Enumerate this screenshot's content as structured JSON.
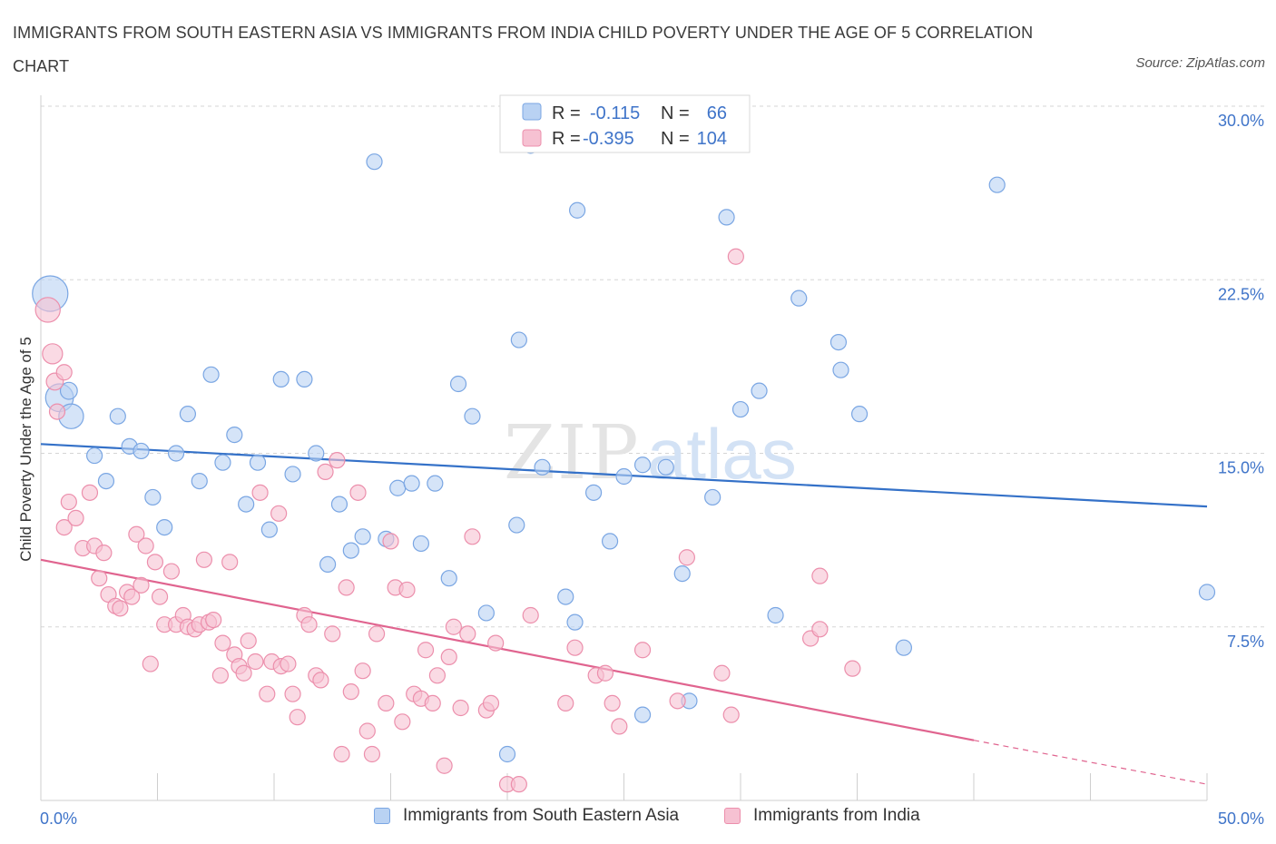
{
  "title": "IMMIGRANTS FROM SOUTH EASTERN ASIA VS IMMIGRANTS FROM INDIA CHILD POVERTY UNDER THE AGE OF 5 CORRELATION CHART",
  "source": "Source: ZipAtlas.com",
  "watermark": {
    "zip": "ZIP",
    "atlas": "atlas"
  },
  "legend": {
    "blue": {
      "r_label": "R =",
      "r_value": "-0.115",
      "n_label": "N =",
      "n_value": "66"
    },
    "pink": {
      "r_label": "R =",
      "r_value": "-0.395",
      "n_label": "N =",
      "n_value": "104"
    }
  },
  "colors": {
    "blue_fill": "#b9d2f3",
    "blue_stroke": "#7aa6e3",
    "blue_line": "#3471c8",
    "pink_fill": "#f6c1d2",
    "pink_stroke": "#ec8fac",
    "pink_line": "#e0648f",
    "tick_text": "#3f74c9",
    "grid": "#d5d5d5"
  },
  "chart_data": {
    "type": "scatter",
    "title": "IMMIGRANTS FROM SOUTH EASTERN ASIA VS IMMIGRANTS FROM INDIA CHILD POVERTY UNDER THE AGE OF 5 CORRELATION CHART",
    "xlabel": "",
    "ylabel": "Child Poverty Under the Age of 5",
    "xlim": [
      0,
      50
    ],
    "ylim": [
      0,
      30
    ],
    "x_tick_labels": [
      "0.0%",
      "50.0%"
    ],
    "y_ticks": [
      7.5,
      15,
      22.5,
      30
    ],
    "y_tick_labels": [
      "7.5%",
      "15.0%",
      "22.5%",
      "30.0%"
    ],
    "grid": true,
    "legend_position": "top-center",
    "series": [
      {
        "name": "Immigrants from South Eastern Asia",
        "color": "#b9d2f3",
        "trend": [
          [
            0,
            15.4
          ],
          [
            50,
            12.7
          ]
        ],
        "points": [
          [
            0.4,
            21.9,
            2.3
          ],
          [
            0.8,
            17.4,
            1.8
          ],
          [
            1.2,
            17.7,
            1.1
          ],
          [
            1.3,
            16.6,
            1.6
          ],
          [
            2.3,
            14.9,
            1.0
          ],
          [
            2.8,
            13.8,
            1.0
          ],
          [
            3.3,
            16.6,
            1.0
          ],
          [
            3.8,
            15.3,
            1.0
          ],
          [
            4.3,
            15.1,
            1.0
          ],
          [
            4.8,
            13.1,
            1.0
          ],
          [
            5.3,
            11.8,
            1.0
          ],
          [
            5.8,
            15.0,
            1.0
          ],
          [
            6.3,
            16.7,
            1.0
          ],
          [
            6.8,
            13.8,
            1.0
          ],
          [
            7.3,
            18.4,
            1.0
          ],
          [
            7.8,
            14.6,
            1.0
          ],
          [
            8.3,
            15.8,
            1.0
          ],
          [
            8.8,
            12.8,
            1.0
          ],
          [
            9.3,
            14.6,
            1.0
          ],
          [
            9.8,
            11.7,
            1.0
          ],
          [
            10.3,
            18.2,
            1.0
          ],
          [
            10.8,
            14.1,
            1.0
          ],
          [
            11.3,
            18.2,
            1.0
          ],
          [
            11.8,
            15.0,
            1.0
          ],
          [
            12.3,
            10.2,
            1.0
          ],
          [
            12.8,
            12.8,
            1.0
          ],
          [
            13.3,
            10.8,
            1.0
          ],
          [
            13.8,
            11.4,
            1.0
          ],
          [
            14.3,
            27.6,
            1.0
          ],
          [
            14.8,
            11.3,
            1.0
          ],
          [
            15.3,
            13.5,
            1.0
          ],
          [
            15.9,
            13.7,
            1.0
          ],
          [
            16.3,
            11.1,
            1.0
          ],
          [
            16.9,
            13.7,
            1.0
          ],
          [
            17.5,
            9.6,
            1.0
          ],
          [
            17.9,
            18.0,
            1.0
          ],
          [
            18.5,
            16.6,
            1.0
          ],
          [
            19.1,
            8.1,
            1.0
          ],
          [
            20.0,
            2.0,
            1.0
          ],
          [
            20.4,
            11.9,
            1.0
          ],
          [
            20.5,
            19.9,
            1.0
          ],
          [
            21.0,
            28.3,
            1.0
          ],
          [
            21.5,
            14.4,
            1.0
          ],
          [
            22.5,
            8.8,
            1.0
          ],
          [
            22.9,
            7.7,
            1.0
          ],
          [
            23.0,
            25.5,
            1.0
          ],
          [
            23.7,
            13.3,
            1.0
          ],
          [
            24.4,
            11.2,
            1.0
          ],
          [
            25.0,
            14.0,
            1.0
          ],
          [
            25.8,
            14.5,
            1.0
          ],
          [
            25.8,
            3.7,
            1.0
          ],
          [
            26.8,
            14.4,
            1.0
          ],
          [
            27.5,
            9.8,
            1.0
          ],
          [
            27.8,
            4.3,
            1.0
          ],
          [
            28.8,
            13.1,
            1.0
          ],
          [
            29.4,
            25.2,
            1.0
          ],
          [
            30.0,
            16.9,
            1.0
          ],
          [
            30.8,
            17.7,
            1.0
          ],
          [
            31.5,
            8.0,
            1.0
          ],
          [
            32.5,
            21.7,
            1.0
          ],
          [
            34.2,
            19.8,
            1.0
          ],
          [
            34.3,
            18.6,
            1.0
          ],
          [
            35.1,
            16.7,
            1.0
          ],
          [
            37.0,
            6.6,
            1.0
          ],
          [
            41.0,
            26.6,
            1.0
          ],
          [
            50.0,
            9.0,
            1.0
          ]
        ]
      },
      {
        "name": "Immigrants from India",
        "color": "#f6c1d2",
        "trend": [
          [
            0,
            10.4
          ],
          [
            40,
            2.6
          ]
        ],
        "trend_dashed": [
          [
            40,
            2.6
          ],
          [
            50,
            0.7
          ]
        ],
        "points": [
          [
            0.3,
            21.2,
            1.6
          ],
          [
            0.5,
            19.3,
            1.3
          ],
          [
            0.6,
            18.1,
            1.1
          ],
          [
            0.7,
            16.8,
            1.0
          ],
          [
            1.0,
            18.5,
            1.0
          ],
          [
            1.0,
            11.8,
            1.0
          ],
          [
            1.2,
            12.9,
            1.0
          ],
          [
            1.5,
            12.2,
            1.0
          ],
          [
            1.8,
            10.9,
            1.0
          ],
          [
            2.1,
            13.3,
            1.0
          ],
          [
            2.3,
            11.0,
            1.0
          ],
          [
            2.5,
            9.6,
            1.0
          ],
          [
            2.7,
            10.7,
            1.0
          ],
          [
            2.9,
            8.9,
            1.0
          ],
          [
            3.2,
            8.4,
            1.0
          ],
          [
            3.4,
            8.3,
            1.0
          ],
          [
            3.7,
            9.0,
            1.0
          ],
          [
            3.9,
            8.8,
            1.0
          ],
          [
            4.1,
            11.5,
            1.0
          ],
          [
            4.3,
            9.3,
            1.0
          ],
          [
            4.5,
            11.0,
            1.0
          ],
          [
            4.7,
            5.9,
            1.0
          ],
          [
            4.9,
            10.3,
            1.0
          ],
          [
            5.1,
            8.8,
            1.0
          ],
          [
            5.3,
            7.6,
            1.0
          ],
          [
            5.6,
            9.9,
            1.0
          ],
          [
            5.8,
            7.6,
            1.0
          ],
          [
            6.1,
            8.0,
            1.0
          ],
          [
            6.3,
            7.5,
            1.0
          ],
          [
            6.6,
            7.4,
            1.0
          ],
          [
            6.8,
            7.6,
            1.0
          ],
          [
            7.0,
            10.4,
            1.0
          ],
          [
            7.2,
            7.7,
            1.0
          ],
          [
            7.4,
            7.8,
            1.0
          ],
          [
            7.7,
            5.4,
            1.0
          ],
          [
            7.8,
            6.8,
            1.0
          ],
          [
            8.1,
            10.3,
            1.0
          ],
          [
            8.3,
            6.3,
            1.0
          ],
          [
            8.5,
            5.8,
            1.0
          ],
          [
            8.7,
            5.5,
            1.0
          ],
          [
            8.9,
            6.9,
            1.0
          ],
          [
            9.2,
            6.0,
            1.0
          ],
          [
            9.4,
            13.3,
            1.0
          ],
          [
            9.7,
            4.6,
            1.0
          ],
          [
            9.9,
            6.0,
            1.0
          ],
          [
            10.2,
            12.4,
            1.0
          ],
          [
            10.3,
            5.8,
            1.0
          ],
          [
            10.6,
            5.9,
            1.0
          ],
          [
            10.8,
            4.6,
            1.0
          ],
          [
            11.0,
            3.6,
            1.0
          ],
          [
            11.3,
            8.0,
            1.0
          ],
          [
            11.5,
            7.6,
            1.0
          ],
          [
            11.8,
            5.4,
            1.0
          ],
          [
            12.0,
            5.2,
            1.0
          ],
          [
            12.2,
            14.2,
            1.0
          ],
          [
            12.5,
            7.2,
            1.0
          ],
          [
            12.7,
            14.7,
            1.0
          ],
          [
            12.9,
            2.0,
            1.0
          ],
          [
            13.1,
            9.2,
            1.0
          ],
          [
            13.3,
            4.7,
            1.0
          ],
          [
            13.6,
            13.3,
            1.0
          ],
          [
            13.8,
            5.6,
            1.0
          ],
          [
            14.0,
            3.0,
            1.0
          ],
          [
            14.2,
            2.0,
            1.0
          ],
          [
            14.4,
            7.2,
            1.0
          ],
          [
            14.8,
            4.2,
            1.0
          ],
          [
            15.0,
            11.2,
            1.0
          ],
          [
            15.2,
            9.2,
            1.0
          ],
          [
            15.5,
            3.4,
            1.0
          ],
          [
            15.7,
            9.1,
            1.0
          ],
          [
            16.0,
            4.6,
            1.0
          ],
          [
            16.3,
            4.4,
            1.0
          ],
          [
            16.5,
            6.5,
            1.0
          ],
          [
            16.8,
            4.2,
            1.0
          ],
          [
            17.0,
            5.4,
            1.0
          ],
          [
            17.3,
            1.5,
            1.0
          ],
          [
            17.5,
            6.2,
            1.0
          ],
          [
            17.7,
            7.5,
            1.0
          ],
          [
            18.0,
            4.0,
            1.0
          ],
          [
            18.3,
            7.2,
            1.0
          ],
          [
            18.5,
            11.4,
            1.0
          ],
          [
            19.1,
            3.9,
            1.0
          ],
          [
            19.3,
            4.2,
            1.0
          ],
          [
            19.5,
            6.8,
            1.0
          ],
          [
            20.0,
            0.7,
            1.0
          ],
          [
            20.5,
            0.7,
            1.0
          ],
          [
            21.0,
            8.0,
            1.0
          ],
          [
            22.5,
            4.2,
            1.0
          ],
          [
            22.9,
            6.6,
            1.0
          ],
          [
            23.8,
            5.4,
            1.0
          ],
          [
            24.2,
            5.5,
            1.0
          ],
          [
            24.5,
            4.2,
            1.0
          ],
          [
            24.8,
            3.2,
            1.0
          ],
          [
            25.8,
            6.5,
            1.0
          ],
          [
            27.3,
            4.3,
            1.0
          ],
          [
            27.7,
            10.5,
            1.0
          ],
          [
            29.2,
            5.5,
            1.0
          ],
          [
            29.6,
            3.7,
            1.0
          ],
          [
            29.8,
            23.5,
            1.0
          ],
          [
            33.0,
            7.0,
            1.0
          ],
          [
            33.4,
            7.4,
            1.0
          ],
          [
            33.4,
            9.7,
            1.0
          ],
          [
            34.8,
            5.7,
            1.0
          ]
        ]
      }
    ]
  },
  "bottom_legend": {
    "blue_label": "Immigrants from South Eastern Asia",
    "pink_label": "Immigrants from India"
  }
}
